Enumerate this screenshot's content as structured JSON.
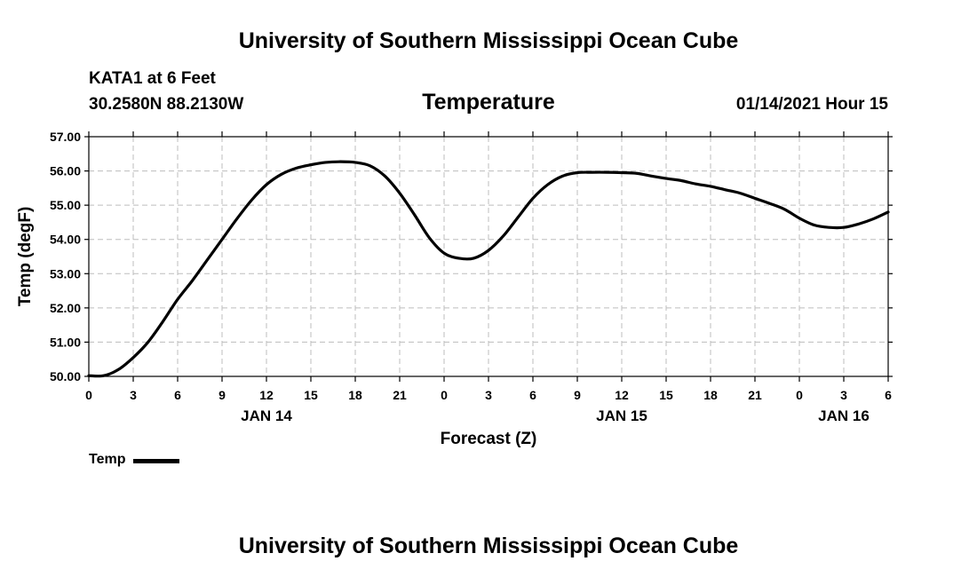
{
  "header": {
    "title": "University of Southern Mississippi Ocean Cube",
    "station": "KATA1 at 6 Feet",
    "coords": "30.2580N 88.2130W",
    "variable": "Temperature",
    "run_time": "01/14/2021 Hour 15"
  },
  "footer": {
    "title": "University of Southern Mississippi Ocean Cube"
  },
  "chart_data": {
    "type": "line",
    "title": "Temperature",
    "xlabel": "Forecast (Z)",
    "ylabel": "Temp (degF)",
    "ylim": [
      50.0,
      57.0
    ],
    "xlim": [
      0,
      54
    ],
    "x_unit": "forecast hours from 00Z JAN 14",
    "grid": true,
    "legend_placement": "bottom-left",
    "y_ticks": [
      "50.00",
      "51.00",
      "52.00",
      "53.00",
      "54.00",
      "55.00",
      "56.00",
      "57.00"
    ],
    "x_tick_labels": [
      "0",
      "3",
      "6",
      "9",
      "12",
      "15",
      "18",
      "21",
      "0",
      "3",
      "6",
      "9",
      "12",
      "15",
      "18",
      "21",
      "0",
      "3",
      "6"
    ],
    "day_labels": [
      {
        "label": "JAN 14",
        "x": 12
      },
      {
        "label": "JAN 15",
        "x": 36
      },
      {
        "label": "JAN 16",
        "x": 51
      }
    ],
    "line_color": "#000000",
    "series": [
      {
        "name": "Temp",
        "x": [
          0,
          1,
          2,
          3,
          4,
          5,
          6,
          7,
          8,
          9,
          10,
          11,
          12,
          13,
          14,
          15,
          16,
          17,
          18,
          19,
          20,
          21,
          22,
          23,
          24,
          25,
          26,
          27,
          28,
          29,
          30,
          31,
          32,
          33,
          34,
          35,
          36,
          37,
          38,
          39,
          40,
          41,
          42,
          43,
          44,
          45,
          46,
          47,
          48,
          49,
          50,
          51,
          52,
          53,
          54
        ],
        "y": [
          50.02,
          50.02,
          50.2,
          50.55,
          51.0,
          51.6,
          52.25,
          52.8,
          53.4,
          54.0,
          54.6,
          55.15,
          55.6,
          55.9,
          56.08,
          56.18,
          56.25,
          56.27,
          56.25,
          56.15,
          55.85,
          55.35,
          54.72,
          54.05,
          53.6,
          53.45,
          53.45,
          53.68,
          54.1,
          54.65,
          55.2,
          55.6,
          55.85,
          55.95,
          55.96,
          55.96,
          55.95,
          55.93,
          55.85,
          55.78,
          55.72,
          55.62,
          55.55,
          55.45,
          55.35,
          55.2,
          55.05,
          54.88,
          54.62,
          54.42,
          54.35,
          54.35,
          54.45,
          54.6,
          54.8
        ]
      }
    ]
  }
}
